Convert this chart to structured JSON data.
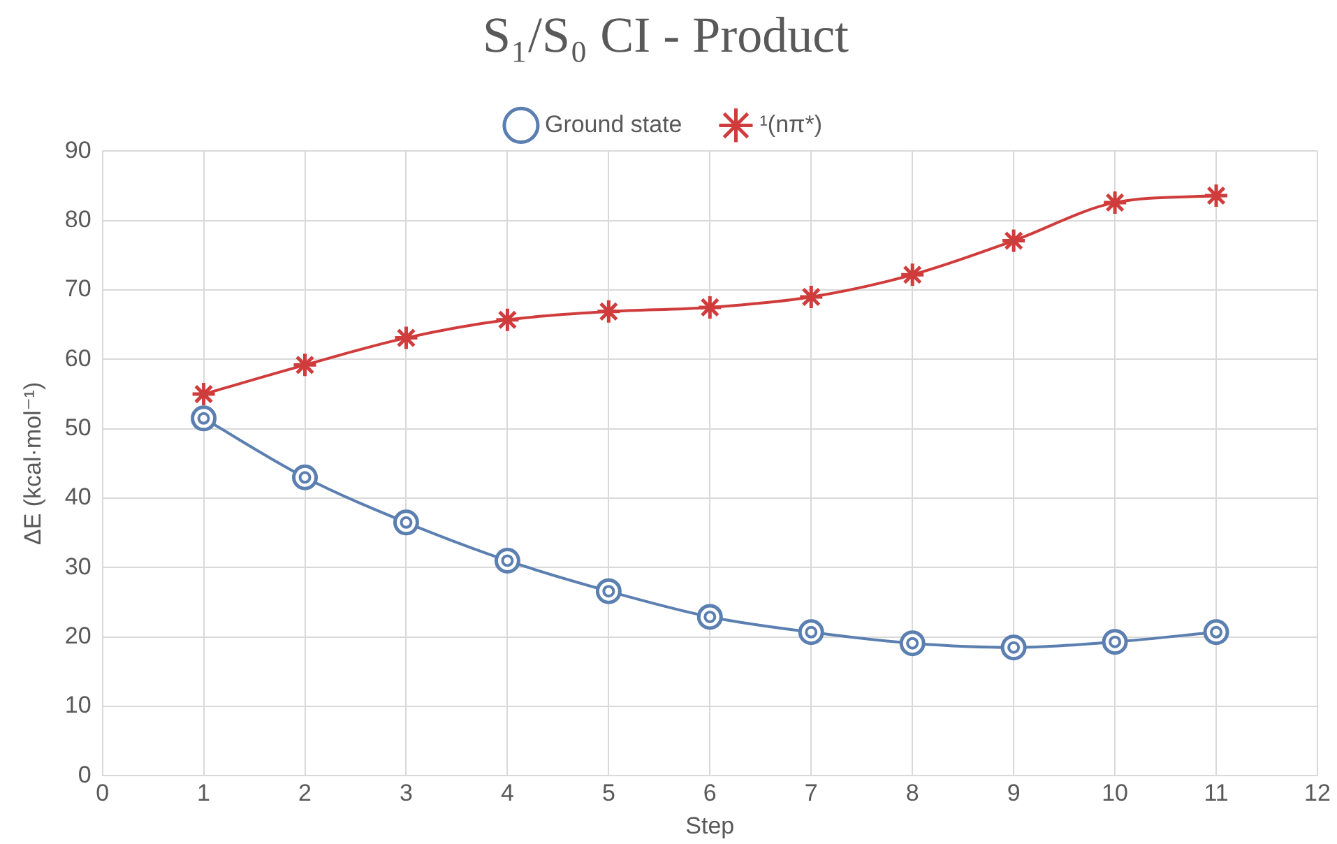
{
  "chart_data": {
    "type": "line",
    "title": "S₁/S₀ CI - Product",
    "xlabel": "Step",
    "ylabel": "ΔE (kcal·mol⁻¹)",
    "x": [
      1,
      2,
      3,
      4,
      5,
      6,
      7,
      8,
      9,
      10,
      11
    ],
    "series": [
      {
        "name": "Ground state",
        "color": "#5b7fb0",
        "marker": "circle",
        "values": [
          51.5,
          43.0,
          36.5,
          31.0,
          26.6,
          22.9,
          20.7,
          19.1,
          18.5,
          19.3,
          20.7
        ]
      },
      {
        "name": "¹(nπ*)",
        "color": "#d03c3c",
        "marker": "cross",
        "values": [
          55.0,
          59.2,
          63.1,
          65.7,
          66.9,
          67.5,
          69.0,
          72.2,
          77.1,
          82.6,
          83.6
        ]
      }
    ],
    "xlim": [
      0,
      12
    ],
    "xticks": [
      0,
      1,
      2,
      3,
      4,
      5,
      6,
      7,
      8,
      9,
      10,
      11,
      12
    ],
    "ylim": [
      0,
      90
    ],
    "yticks": [
      0,
      10,
      20,
      30,
      40,
      50,
      60,
      70,
      80,
      90
    ],
    "grid": true,
    "legend": "top"
  }
}
